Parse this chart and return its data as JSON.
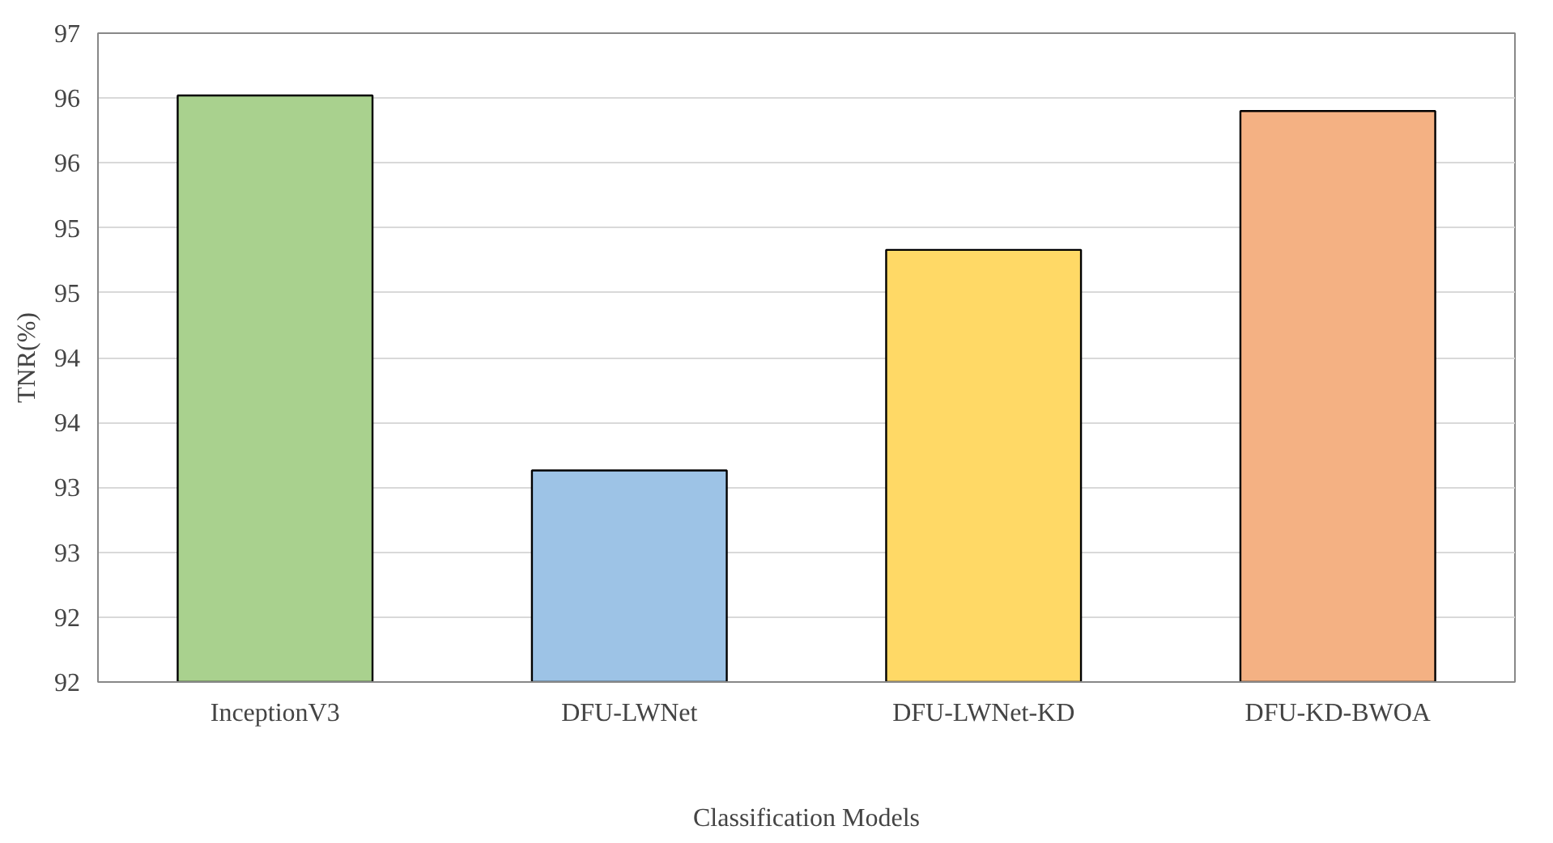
{
  "chart_data": {
    "type": "bar",
    "xlabel": "Classification Models",
    "ylabel": "TNR(%)",
    "categories": [
      "InceptionV3",
      "DFU-LWNet",
      "DFU-LWNet-KD",
      "DFU-KD-BWOA"
    ],
    "values": [
      96.52,
      93.63,
      95.33,
      96.4
    ],
    "colors": [
      "#a9d18e",
      "#9dc3e6",
      "#ffd966",
      "#f4b183"
    ],
    "ylim": [
      92,
      97
    ],
    "yticks": [
      92,
      {
        "value": 92.5,
        "label": "92"
      },
      93,
      {
        "value": 93.5,
        "label": "93"
      },
      94,
      {
        "value": 94.5,
        "label": "94"
      },
      95,
      {
        "value": 95.5,
        "label": "95"
      },
      96,
      {
        "value": 96.5,
        "label": "96"
      },
      97
    ],
    "grid": "y"
  }
}
